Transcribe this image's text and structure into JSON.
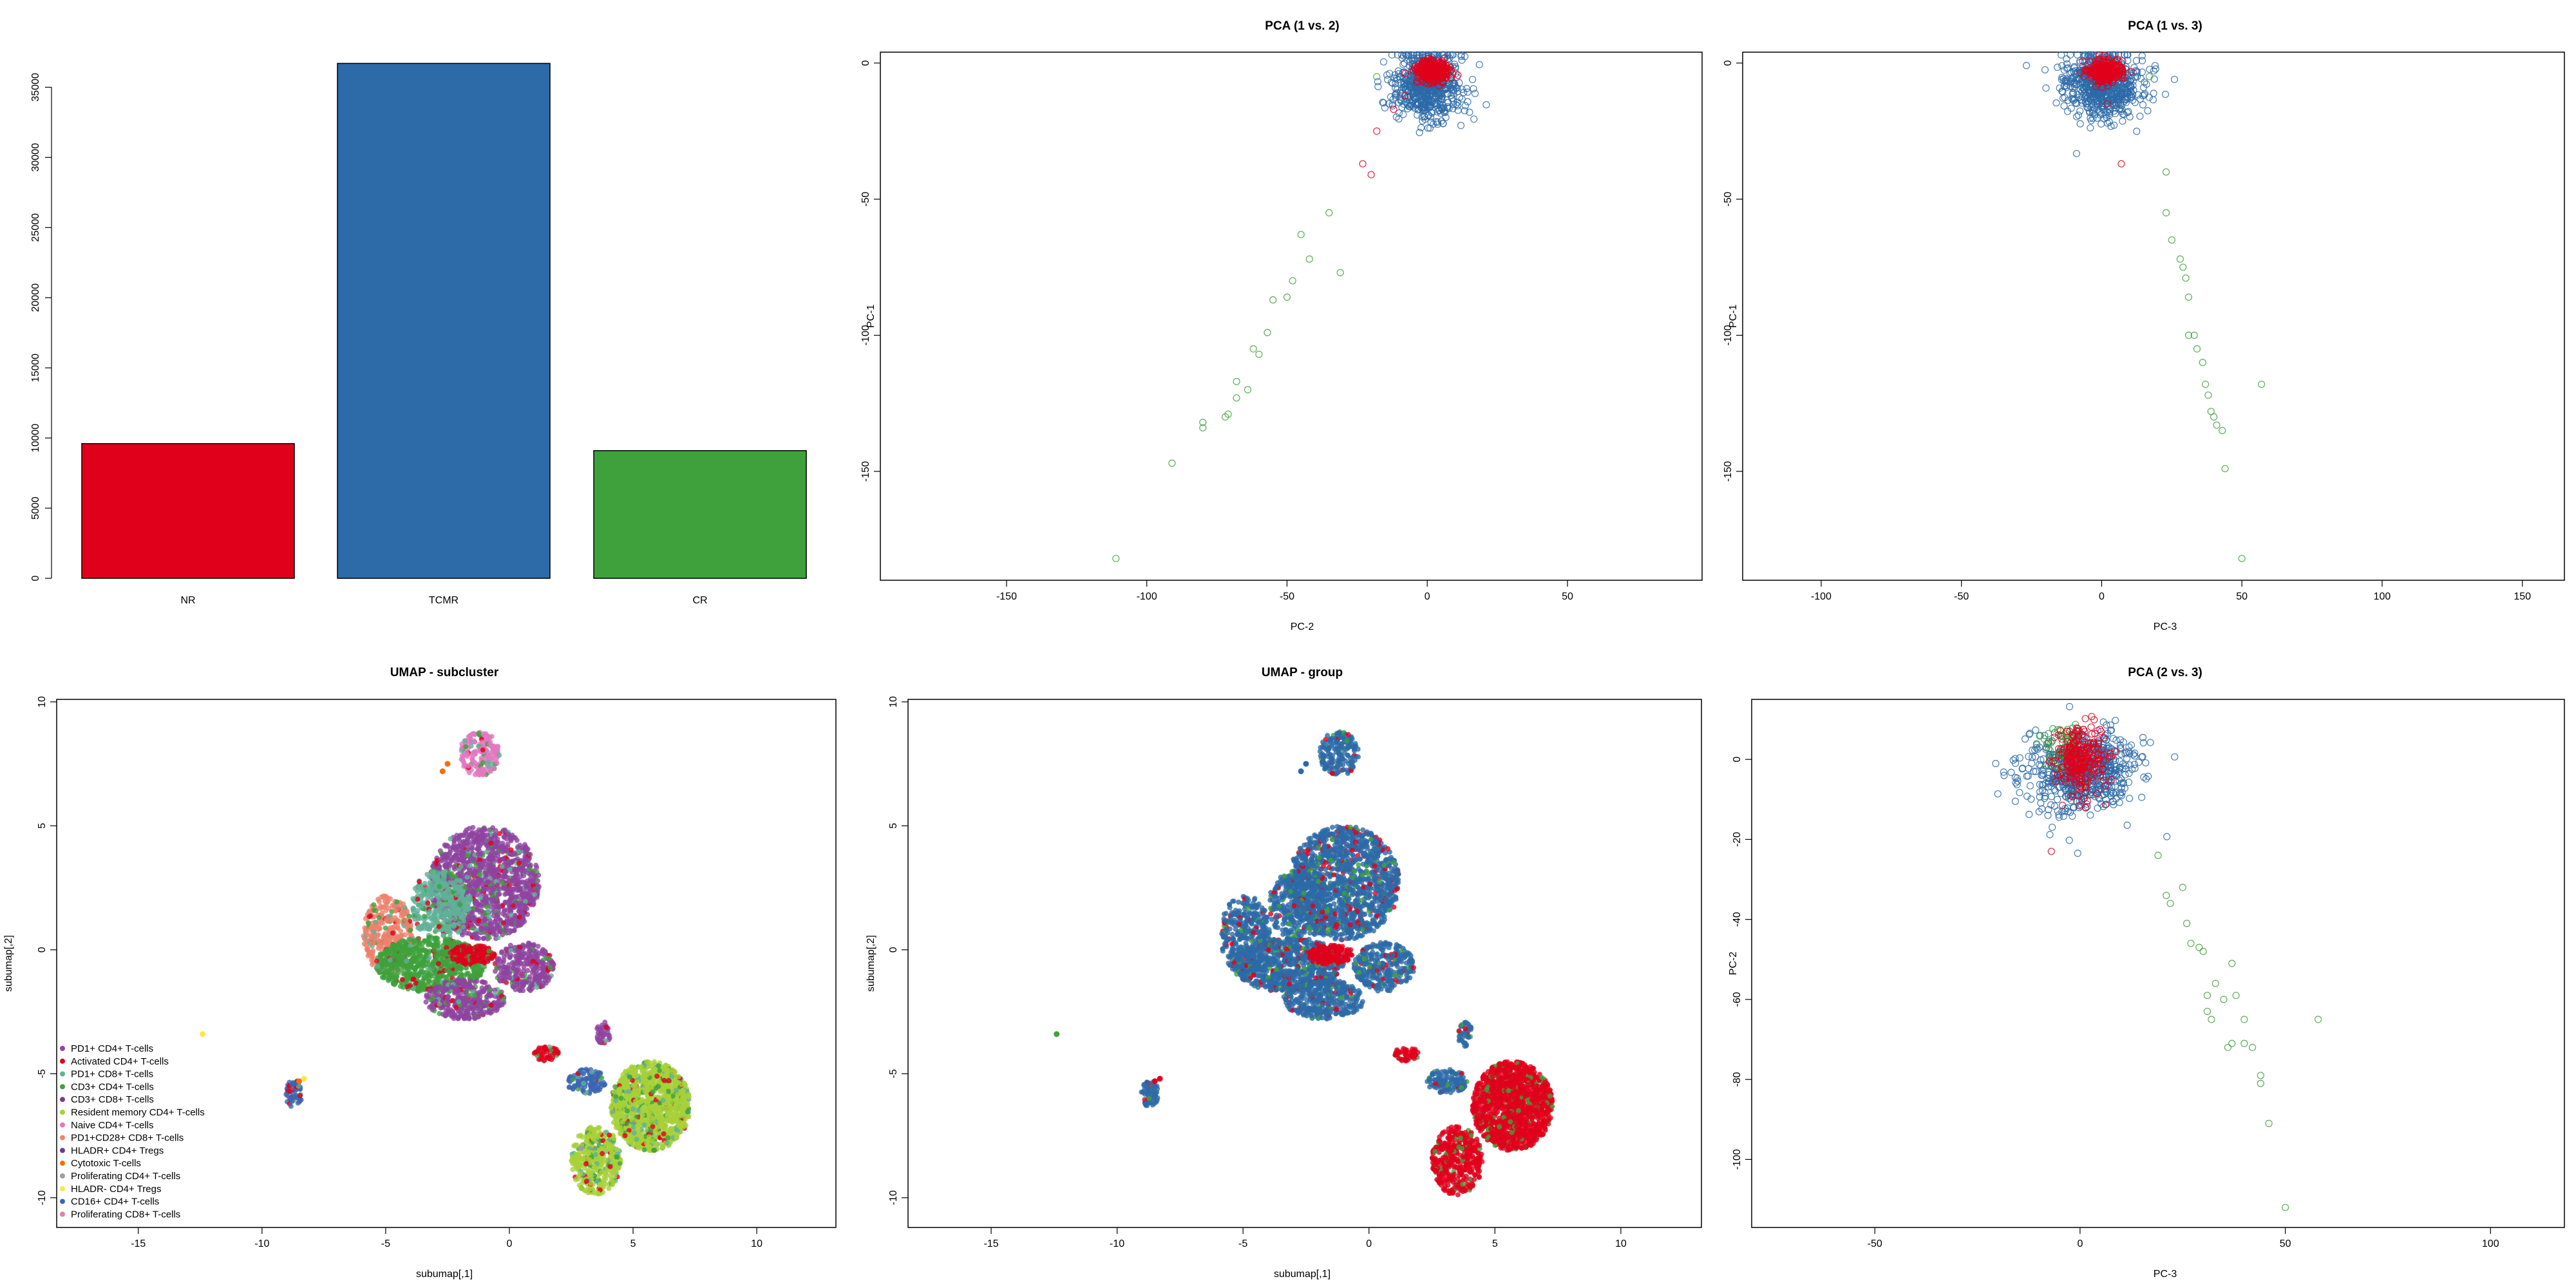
{
  "chart_data": [
    {
      "id": "bar",
      "type": "bar",
      "title": "",
      "categories": [
        "NR",
        "TCMR",
        "CR"
      ],
      "values": [
        9600,
        36700,
        9100
      ],
      "colors": [
        "#e0001b",
        "#2c6aa8",
        "#3fa13b"
      ],
      "ylim": [
        0,
        37500
      ],
      "yticks": [
        "0",
        "5000",
        "10000",
        "15000",
        "20000",
        "25000",
        "30000",
        "35000"
      ],
      "xlabel": "",
      "ylabel": ""
    },
    {
      "id": "pca12",
      "type": "scatter",
      "title": "PCA (1 vs. 2)",
      "xlabel": "PC-2",
      "ylabel": "PC-1",
      "xlim": [
        -195,
        98
      ],
      "ylim": [
        -190,
        4
      ],
      "xticks": [
        "-150",
        "-100",
        "-50",
        "0",
        "50"
      ],
      "yticks": [
        "0",
        "-50",
        "-100",
        "-150"
      ],
      "series": [
        {
          "color": "#2c6aa8",
          "cluster": {
            "cx": 0,
            "cy": -8,
            "sx": 6,
            "sy": 6,
            "n": 700
          }
        },
        {
          "color": "#e0001b",
          "cluster": {
            "cx": 2,
            "cy": -3,
            "sx": 3,
            "sy": 2,
            "n": 300
          },
          "x": [
            -23,
            -20,
            -18,
            -12,
            -8
          ],
          "y": [
            -37,
            -41,
            -25,
            -17,
            -12
          ]
        },
        {
          "color": "#3fa13b",
          "x": [
            -18,
            -35,
            -31,
            -45,
            -55,
            -42,
            -48,
            -50,
            -57,
            -60,
            -62,
            -64,
            -68,
            -68,
            -71,
            -72,
            -80,
            -80,
            -91,
            -111
          ],
          "y": [
            -5,
            -55,
            -77,
            -63,
            -87,
            -72,
            -80,
            -86,
            -99,
            -107,
            -105,
            -120,
            -117,
            -123,
            -129,
            -130,
            -132,
            -134,
            -147,
            -182
          ]
        }
      ]
    },
    {
      "id": "pca13",
      "type": "scatter",
      "title": "PCA (1 vs. 3)",
      "xlabel": "PC-3",
      "ylabel": "PC-1",
      "xlim": [
        -128,
        165
      ],
      "ylim": [
        -190,
        4
      ],
      "xticks": [
        "-100",
        "-50",
        "0",
        "50",
        "100",
        "150"
      ],
      "yticks": [
        "0",
        "-50",
        "-100",
        "-150"
      ],
      "series": [
        {
          "color": "#2c6aa8",
          "cluster": {
            "cx": 0,
            "cy": -8,
            "sx": 7,
            "sy": 6,
            "n": 700
          }
        },
        {
          "color": "#e0001b",
          "cluster": {
            "cx": 1,
            "cy": -3,
            "sx": 3,
            "sy": 2,
            "n": 300
          },
          "x": [
            7,
            2
          ],
          "y": [
            -37,
            -15
          ]
        },
        {
          "color": "#3fa13b",
          "x": [
            17,
            23,
            23,
            25,
            28,
            29,
            30,
            31,
            31,
            33,
            34,
            36,
            37,
            38,
            39,
            40,
            41,
            43,
            44,
            50,
            57
          ],
          "y": [
            -5,
            -40,
            -55,
            -65,
            -72,
            -75,
            -79,
            -86,
            -100,
            -100,
            -105,
            -110,
            -118,
            -122,
            -128,
            -130,
            -133,
            -135,
            -149,
            -182,
            -118
          ]
        }
      ]
    },
    {
      "id": "umap-sub",
      "type": "scatter",
      "title": "UMAP - subcluster",
      "xlabel": "subumap[,1]",
      "ylabel": "subumap[,2]",
      "xlim": [
        -18.3,
        13.2
      ],
      "ylim": [
        -11.2,
        10.1
      ],
      "xticks": [
        "-15",
        "-10",
        "-5",
        "0",
        "5",
        "10"
      ],
      "yticks": [
        "10",
        "5",
        "0",
        "-5",
        "-10"
      ],
      "legend": {
        "position": "bottom-left",
        "entries": [
          {
            "label": "PD1+ CD4+ T-cells",
            "color": "#8e44a0"
          },
          {
            "label": "Activated CD4+ T-cells",
            "color": "#e0001b"
          },
          {
            "label": "PD1+ CD8+ T-cells",
            "color": "#5fb197"
          },
          {
            "label": "CD3+ CD4+ T-cells",
            "color": "#3fa13b"
          },
          {
            "label": "CD3+ CD8+ T-cells",
            "color": "#7a3b8f"
          },
          {
            "label": "Resident memory CD4+ T-cells",
            "color": "#a8d13a"
          },
          {
            "label": "Naive CD4+ T-cells",
            "color": "#e377c2"
          },
          {
            "label": "PD1+CD28+ CD8+ T-cells",
            "color": "#f07f6c"
          },
          {
            "label": "HLADR+ CD4+ Tregs",
            "color": "#6b3b8e"
          },
          {
            "label": "Cytotoxic T-cells",
            "color": "#f0700f"
          },
          {
            "label": "Proliferating CD4+ T-cells",
            "color": "#9e9e9e"
          },
          {
            "label": "HLADR- CD4+ Tregs",
            "color": "#f5e94a"
          },
          {
            "label": "CD16+ CD4+ T-cells",
            "color": "#3b65b5"
          },
          {
            "label": "Proliferating CD8+ T-cells",
            "color": "#e87ba8"
          }
        ]
      }
    },
    {
      "id": "umap-group",
      "type": "scatter",
      "title": "UMAP - group",
      "xlabel": "subumap[,1]",
      "ylabel": "subumap[,2]",
      "xlim": [
        -18.3,
        13.2
      ],
      "ylim": [
        -11.2,
        10.1
      ],
      "xticks": [
        "-15",
        "-10",
        "-5",
        "0",
        "5",
        "10"
      ],
      "yticks": [
        "10",
        "5",
        "0",
        "-5",
        "-10"
      ]
    },
    {
      "id": "pca23",
      "type": "scatter",
      "title": "PCA (2 vs. 3)",
      "xlabel": "PC-3",
      "ylabel": "PC-2",
      "xlim": [
        -80,
        118
      ],
      "ylim": [
        -117,
        15
      ],
      "xticks": [
        "-50",
        "0",
        "50",
        "100"
      ],
      "yticks": [
        "0",
        "-20",
        "-40",
        "-60",
        "-80",
        "-100"
      ],
      "series": [
        {
          "color": "#2c6aa8",
          "cluster": {
            "cx": 0,
            "cy": -3,
            "sx": 7,
            "sy": 5,
            "n": 700
          }
        },
        {
          "color": "#3fa13b",
          "cluster": {
            "cx": -3,
            "cy": 3,
            "sx": 3,
            "sy": 3,
            "n": 60
          },
          "x": [
            19,
            21,
            22,
            25,
            26,
            27,
            29,
            30,
            31,
            31,
            32,
            33,
            35,
            36,
            37,
            37,
            38,
            40,
            40,
            42,
            44,
            44,
            46,
            50,
            58
          ],
          "y": [
            -24,
            -34,
            -36,
            -32,
            -41,
            -46,
            -47,
            -48,
            -59,
            -63,
            -65,
            -56,
            -60,
            -72,
            -71,
            -51,
            -59,
            -65,
            -71,
            -72,
            -79,
            -81,
            -91,
            -112,
            -65
          ]
        },
        {
          "color": "#e0001b",
          "cluster": {
            "cx": 0,
            "cy": 0,
            "sx": 3,
            "sy": 4,
            "n": 250
          },
          "x": [
            -7
          ],
          "y": [
            -23
          ]
        }
      ]
    }
  ]
}
